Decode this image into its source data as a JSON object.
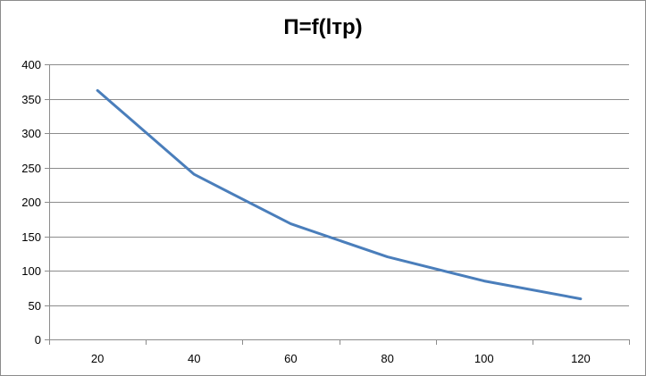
{
  "chart_data": {
    "type": "line",
    "title": "П=f(lтр)",
    "xlabel": "",
    "ylabel": "",
    "categories": [
      "20",
      "40",
      "60",
      "80",
      "100",
      "120"
    ],
    "y_ticks": [
      "0",
      "50",
      "100",
      "150",
      "200",
      "250",
      "300",
      "350",
      "400"
    ],
    "ylim": [
      0,
      400
    ],
    "grid": true,
    "legend": "none",
    "series": [
      {
        "values": [
          362,
          240,
          168,
          120,
          85,
          59
        ],
        "color": "#4a7ebb"
      }
    ]
  }
}
